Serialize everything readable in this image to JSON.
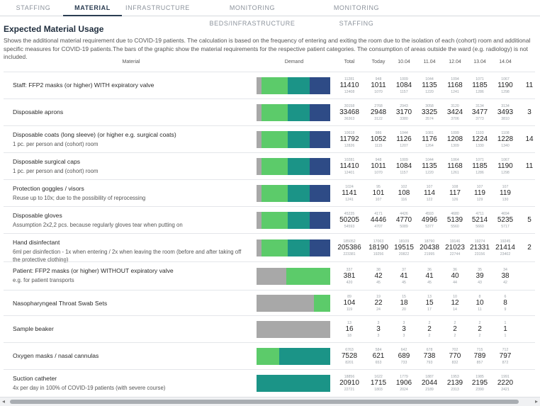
{
  "tabs": [
    "STAFFING",
    "MATERIAL",
    "INFRASTRUCTURE",
    "MONITORING BEDS/INFRASTRUCTURE",
    "MONITORING STAFFING"
  ],
  "title": "Expected Material Usage",
  "description": "Shows the additional material requirement due to COVID-19 patients. The calculation is based on the frequency of entering and exiting the room due to the isolation of each (cohort) room and additional specific measures for COVID-19 patients.The bars of the graphic show the material requirements for the respective patient categories. The consumption of areas outside the ward (e.g. radiology) is not included.",
  "columns": {
    "material": "Material",
    "demand": "Demand",
    "total": "Total",
    "today": "Today",
    "d1": "10.04",
    "d2": "11.04",
    "d3": "12.04",
    "d4": "13.04",
    "d5": "14.04"
  },
  "colors": {
    "grey": "#a8a8a8",
    "green": "#5ccb6a",
    "teal": "#1b9487",
    "navy": "#2e4b86",
    "active_tab": "#2b3d52"
  },
  "rows": [
    {
      "name": "Staff: FFP2 masks (or higher) WITH expiratory valve",
      "sub": "",
      "bar": [
        0.07,
        0.35,
        0.3,
        0.28
      ],
      "cells": [
        [
          "11281",
          "11410",
          "12408"
        ],
        [
          "948",
          "1011",
          "1070"
        ],
        [
          "1009",
          "1084",
          "1157"
        ],
        [
          "1044",
          "1135",
          "1220"
        ],
        [
          "1094",
          "1168",
          "1241"
        ],
        [
          "1071",
          "1185",
          "1286"
        ],
        [
          "1067",
          "1190",
          "1298"
        ],
        [
          "",
          "11",
          ""
        ]
      ]
    },
    {
      "name": "Disposable aprons",
      "sub": "",
      "bar": [
        0.07,
        0.35,
        0.3,
        0.28
      ],
      "cells": [
        [
          "30158",
          "33468",
          "36363"
        ],
        [
          "2768",
          "2948",
          "3122"
        ],
        [
          "2943",
          "3170",
          "3380"
        ],
        [
          "3058",
          "3325",
          "3574"
        ],
        [
          "3120",
          "3424",
          "3706"
        ],
        [
          "3134",
          "3477",
          "3773"
        ],
        [
          "3134",
          "3493",
          "3810"
        ],
        [
          "",
          "3",
          ""
        ]
      ]
    },
    {
      "name": "Disposable coats (long sleeve) (or higher e.g. surgical coats)",
      "sub": "1 pc. per person and (cohort) room",
      "bar": [
        0.07,
        0.35,
        0.3,
        0.28
      ],
      "cells": [
        [
          "10618",
          "11792",
          "12826"
        ],
        [
          "986",
          "1052",
          "1115"
        ],
        [
          "1044",
          "1126",
          "1207"
        ],
        [
          "1081",
          "1176",
          "1264"
        ],
        [
          "1099",
          "1208",
          "1309"
        ],
        [
          "1103",
          "1224",
          "1330"
        ],
        [
          "1108",
          "1228",
          "1340"
        ],
        [
          "",
          "14",
          ""
        ]
      ]
    },
    {
      "name": "Disposable surgical caps",
      "sub": "1 pc. per person and (cohort) room",
      "bar": [
        0.07,
        0.35,
        0.3,
        0.28
      ],
      "cells": [
        [
          "10281",
          "11410",
          "12401"
        ],
        [
          "948",
          "1011",
          "1070"
        ],
        [
          "1009",
          "1084",
          "1157"
        ],
        [
          "1044",
          "1135",
          "1220"
        ],
        [
          "1064",
          "1168",
          "1261"
        ],
        [
          "1071",
          "1185",
          "1286"
        ],
        [
          "1067",
          "1190",
          "1298"
        ],
        [
          "",
          "11",
          ""
        ]
      ]
    },
    {
      "name": "Protection goggles / visors",
      "sub": "Reuse up to 10x; due to the possibility of reprocessing",
      "bar": [
        0.07,
        0.35,
        0.3,
        0.28
      ],
      "cells": [
        [
          "1024",
          "1141",
          "1241"
        ],
        [
          "95",
          "101",
          "107"
        ],
        [
          "102",
          "108",
          "116"
        ],
        [
          "107",
          "114",
          "122"
        ],
        [
          "108",
          "117",
          "126"
        ],
        [
          "107",
          "119",
          "129"
        ],
        [
          "107",
          "119",
          "130"
        ],
        [
          "",
          "",
          ""
        ]
      ]
    },
    {
      "name": "Disposable gloves",
      "sub": "Assumption 2x2,2 pcs. because regularly gloves tear when putting on",
      "bar": [
        0.07,
        0.35,
        0.3,
        0.28
      ],
      "cells": [
        [
          "45235",
          "50205",
          "54593"
        ],
        [
          "4171",
          "4446",
          "4707"
        ],
        [
          "4426",
          "4770",
          "5089"
        ],
        [
          "4593",
          "4996",
          "5377"
        ],
        [
          "4680",
          "5139",
          "5560"
        ],
        [
          "4711",
          "5214",
          "5660"
        ],
        [
          "4694",
          "5235",
          "5717"
        ],
        [
          "",
          "5",
          ""
        ]
      ]
    },
    {
      "name": "Hand disinfectant",
      "sub": "6ml per disinfection - 1x when entering / 2x when leaving the room (before and after taking off the protective clothing)",
      "bar": [
        0.07,
        0.35,
        0.3,
        0.28
      ],
      "cells": [
        [
          "185052",
          "205386",
          "223381"
        ],
        [
          "17063",
          "18190",
          "19256"
        ],
        [
          "18109",
          "19515",
          "20822"
        ],
        [
          "18790",
          "20438",
          "21995"
        ],
        [
          "19146",
          "21023",
          "22744"
        ],
        [
          "19274",
          "21331",
          "23156"
        ],
        [
          "19245",
          "21414",
          "23402"
        ],
        [
          "",
          "2",
          ""
        ]
      ]
    },
    {
      "name": "Patient: FFP2 masks (or higher) WITHOUT expiratory valve",
      "sub": "e.g. for patient transports",
      "bar": [
        0.4,
        0.6,
        0,
        0
      ],
      "cells": [
        [
          "337",
          "381",
          "420"
        ],
        [
          "38",
          "42",
          "45"
        ],
        [
          "37",
          "41",
          "45"
        ],
        [
          "36",
          "41",
          "45"
        ],
        [
          "36",
          "40",
          "44"
        ],
        [
          "35",
          "39",
          "43"
        ],
        [
          "34",
          "38",
          "42"
        ],
        [
          "",
          "",
          ""
        ]
      ]
    },
    {
      "name": "Nasopharyngeal Throat Swab Sets",
      "sub": "",
      "bar": [
        0.78,
        0.22,
        0,
        0
      ],
      "cells": [
        [
          "89",
          "104",
          "119"
        ],
        [
          "19",
          "22",
          "24"
        ],
        [
          "15",
          "18",
          "20"
        ],
        [
          "13",
          "15",
          "17"
        ],
        [
          "10",
          "12",
          "14"
        ],
        [
          "8",
          "10",
          "11"
        ],
        [
          "6",
          "8",
          "9"
        ],
        [
          "",
          "",
          ""
        ]
      ]
    },
    {
      "name": "Sample beaker",
      "sub": "",
      "bar": [
        1,
        0,
        0,
        0
      ],
      "cells": [
        [
          "13",
          "16",
          "18"
        ],
        [
          "3",
          "3",
          "3"
        ],
        [
          "3",
          "3",
          "3"
        ],
        [
          "2",
          "2",
          "2"
        ],
        [
          "2",
          "2",
          "2"
        ],
        [
          "2",
          "2",
          "2"
        ],
        [
          "1",
          "1",
          "1"
        ],
        [
          "",
          "",
          ""
        ]
      ]
    },
    {
      "name": "Oxygen masks / nasal cannulas",
      "sub": "",
      "bar": [
        0,
        0.31,
        0.69,
        0
      ],
      "cells": [
        [
          "6763",
          "7528",
          "8201"
        ],
        [
          "584",
          "621",
          "653"
        ],
        [
          "642",
          "689",
          "733"
        ],
        [
          "678",
          "738",
          "793"
        ],
        [
          "702",
          "770",
          "832"
        ],
        [
          "715",
          "789",
          "857"
        ],
        [
          "712",
          "797",
          "872"
        ],
        [
          "",
          "",
          ""
        ]
      ]
    },
    {
      "name": "Suction catheter",
      "sub": "4x per day in 100% of COVID-19 patients (with severe course)",
      "bar": [
        0,
        0,
        1,
        0
      ],
      "cells": [
        [
          "18856",
          "20910",
          "22721"
        ],
        [
          "1622",
          "1715",
          "1803"
        ],
        [
          "1779",
          "1906",
          "2024"
        ],
        [
          "1887",
          "2044",
          "2189"
        ],
        [
          "1953",
          "2139",
          "2313"
        ],
        [
          "1985",
          "2195",
          "2390"
        ],
        [
          "1991",
          "2220",
          "2421"
        ],
        [
          "",
          "",
          ""
        ]
      ]
    }
  ]
}
